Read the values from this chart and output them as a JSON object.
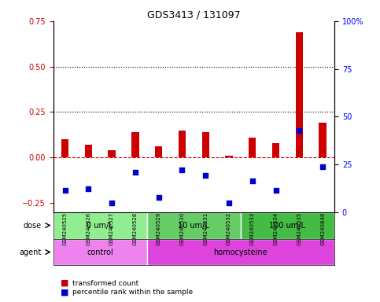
{
  "title": "GDS3413 / 131097",
  "samples": [
    "GSM240525",
    "GSM240526",
    "GSM240527",
    "GSM240528",
    "GSM240529",
    "GSM240530",
    "GSM240531",
    "GSM240532",
    "GSM240533",
    "GSM240534",
    "GSM240535",
    "GSM240848"
  ],
  "red_values": [
    0.1,
    0.07,
    0.04,
    0.14,
    0.06,
    0.15,
    0.14,
    0.01,
    0.11,
    0.08,
    0.69,
    0.19
  ],
  "blue_values": [
    -0.18,
    -0.17,
    -0.25,
    -0.08,
    -0.22,
    -0.07,
    -0.1,
    -0.25,
    -0.13,
    -0.18,
    0.15,
    -0.05
  ],
  "ylim_left": [
    -0.3,
    0.75
  ],
  "ylim_right": [
    0,
    100
  ],
  "yticks_left": [
    -0.25,
    0.0,
    0.25,
    0.5,
    0.75
  ],
  "yticks_right": [
    0,
    25,
    50,
    75,
    100
  ],
  "hlines": [
    0.25,
    0.5
  ],
  "dose_groups": [
    {
      "label": "0 um/L",
      "start": 0,
      "end": 4,
      "color": "#90EE90"
    },
    {
      "label": "10 um/L",
      "start": 4,
      "end": 8,
      "color": "#66CC66"
    },
    {
      "label": "100 um/L",
      "start": 8,
      "end": 12,
      "color": "#44BB44"
    }
  ],
  "agent_groups": [
    {
      "label": "control",
      "start": 0,
      "end": 4,
      "color": "#EE82EE"
    },
    {
      "label": "homocysteine",
      "start": 4,
      "end": 12,
      "color": "#DD44DD"
    }
  ],
  "dose_label": "dose",
  "agent_label": "agent",
  "legend_red": "transformed count",
  "legend_blue": "percentile rank within the sample",
  "red_color": "#CC0000",
  "blue_color": "#0000CC",
  "bar_width": 0.35,
  "zero_line_color": "#CC0000",
  "dotted_line_color": "black",
  "background_color": "#FFFFFF",
  "plot_bg": "#FFFFFF"
}
